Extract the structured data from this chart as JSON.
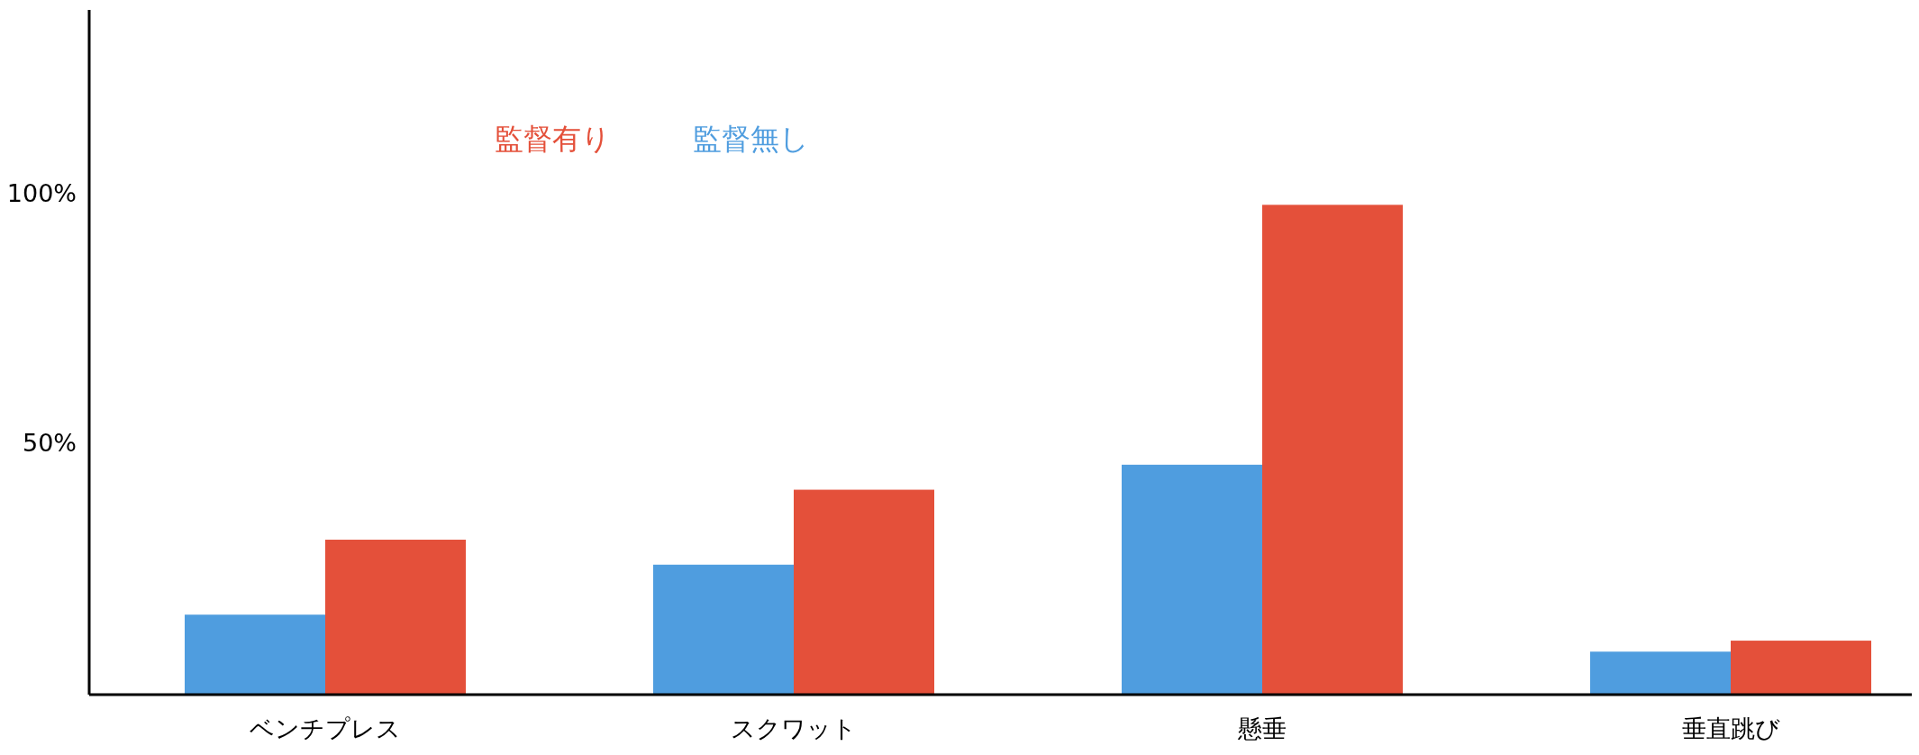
{
  "chart_data": {
    "type": "bar",
    "categories": [
      "ベンチプレス",
      "スクワット",
      "懸垂",
      "垂直跳び"
    ],
    "series": [
      {
        "name": "監督無し",
        "color": "#4f9ddf",
        "values": [
          16,
          26,
          46,
          8.6
        ]
      },
      {
        "name": "監督有り",
        "color": "#e4503a",
        "values": [
          31,
          41,
          98,
          10.8
        ]
      }
    ],
    "ylim": [
      0,
      137
    ],
    "yticks": [
      {
        "value": 50,
        "label": "50%"
      },
      {
        "value": 100,
        "label": "100%"
      }
    ],
    "legend": "top left",
    "grid": false
  }
}
